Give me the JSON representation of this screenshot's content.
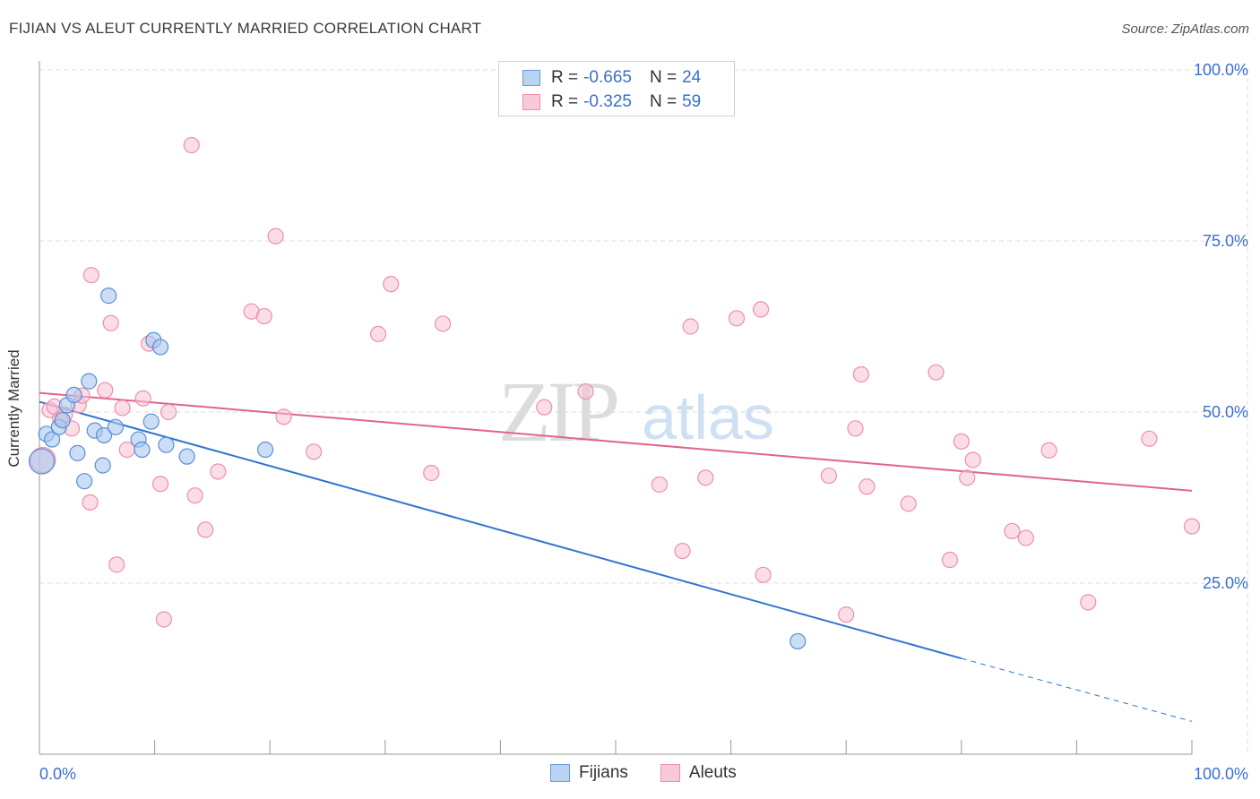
{
  "title": "FIJIAN VS ALEUT CURRENTLY MARRIED CORRELATION CHART",
  "source": "Source: ZipAtlas.com",
  "watermark": "ZIPatlas",
  "legend_top": [
    {
      "r_label": "R =",
      "r_value": "-0.665",
      "n_label": "N =",
      "n_value": "24"
    },
    {
      "r_label": "R =",
      "r_value": "-0.325",
      "n_label": "N =",
      "n_value": "59"
    }
  ],
  "colors": {
    "fijian_fill": "#a9c8f0",
    "fijian_stroke": "#5b8fd6",
    "fijian_line": "#2f74d0",
    "aleut_fill": "#f7c1d2",
    "aleut_stroke": "#ec90ad",
    "aleut_line": "#e0648e",
    "tick_label": "#3a6fd0",
    "grid": "#dddddd"
  },
  "chart_data": {
    "type": "scatter",
    "title": "FIJIAN VS ALEUT CURRENTLY MARRIED CORRELATION CHART",
    "xlabel": "",
    "ylabel": "Currently Married",
    "xlim": [
      0,
      100
    ],
    "ylim": [
      0,
      100
    ],
    "x_tick_labels": [
      "0.0%",
      "100.0%"
    ],
    "y_tick_labels": [
      "25.0%",
      "50.0%",
      "75.0%",
      "100.0%"
    ],
    "y_ticks": [
      25,
      50,
      75,
      100
    ],
    "grid": true,
    "legend_position": "bottom-center",
    "series": [
      {
        "name": "Fijians",
        "r": -0.665,
        "n": 24,
        "points": [
          [
            0.2,
            42.8
          ],
          [
            0.6,
            46.8
          ],
          [
            1.1,
            46.0
          ],
          [
            1.7,
            47.8
          ],
          [
            2.0,
            48.8
          ],
          [
            2.4,
            51.0
          ],
          [
            3.0,
            52.5
          ],
          [
            3.3,
            44.0
          ],
          [
            3.9,
            39.9
          ],
          [
            4.3,
            54.5
          ],
          [
            4.8,
            47.3
          ],
          [
            5.5,
            42.2
          ],
          [
            5.6,
            46.6
          ],
          [
            6.6,
            47.8
          ],
          [
            6.0,
            67.0
          ],
          [
            8.6,
            46.0
          ],
          [
            8.9,
            44.5
          ],
          [
            9.7,
            48.6
          ],
          [
            9.9,
            60.5
          ],
          [
            10.5,
            59.5
          ],
          [
            11.0,
            45.2
          ],
          [
            12.8,
            43.5
          ],
          [
            19.6,
            44.5
          ],
          [
            65.8,
            16.5
          ]
        ],
        "trend": {
          "x0": 0,
          "y0": 51.5,
          "x1": 80,
          "y1": 14.0,
          "dashed_to_x": 100,
          "dashed_to_y": 4.8
        }
      },
      {
        "name": "Aleuts",
        "r": -0.325,
        "n": 59,
        "points": [
          [
            0.3,
            43.0
          ],
          [
            0.9,
            50.3
          ],
          [
            1.3,
            50.8
          ],
          [
            1.8,
            49.0
          ],
          [
            2.2,
            49.6
          ],
          [
            2.8,
            47.6
          ],
          [
            3.4,
            51.0
          ],
          [
            3.7,
            52.4
          ],
          [
            4.4,
            36.8
          ],
          [
            4.5,
            70.0
          ],
          [
            5.7,
            53.2
          ],
          [
            6.2,
            63.0
          ],
          [
            6.7,
            27.7
          ],
          [
            7.2,
            50.6
          ],
          [
            7.6,
            44.5
          ],
          [
            9.0,
            52.0
          ],
          [
            9.5,
            60.0
          ],
          [
            10.5,
            39.5
          ],
          [
            10.8,
            19.7
          ],
          [
            11.2,
            50.0
          ],
          [
            13.2,
            89.0
          ],
          [
            13.5,
            37.8
          ],
          [
            14.4,
            32.8
          ],
          [
            15.5,
            41.3
          ],
          [
            18.4,
            64.7
          ],
          [
            19.5,
            64.0
          ],
          [
            20.5,
            75.7
          ],
          [
            21.2,
            49.3
          ],
          [
            23.8,
            44.2
          ],
          [
            29.4,
            61.4
          ],
          [
            30.5,
            68.7
          ],
          [
            34.0,
            41.1
          ],
          [
            35.0,
            62.9
          ],
          [
            43.8,
            50.7
          ],
          [
            47.4,
            53.0
          ],
          [
            53.8,
            39.4
          ],
          [
            55.8,
            29.7
          ],
          [
            56.5,
            62.5
          ],
          [
            57.8,
            40.4
          ],
          [
            60.5,
            63.7
          ],
          [
            62.8,
            26.2
          ],
          [
            62.6,
            65.0
          ],
          [
            68.5,
            40.7
          ],
          [
            70.0,
            20.4
          ],
          [
            70.8,
            47.6
          ],
          [
            71.3,
            55.5
          ],
          [
            71.8,
            39.1
          ],
          [
            75.4,
            36.6
          ],
          [
            77.8,
            55.8
          ],
          [
            79.0,
            28.4
          ],
          [
            80.0,
            45.7
          ],
          [
            80.5,
            40.4
          ],
          [
            81.0,
            43.0
          ],
          [
            84.4,
            32.6
          ],
          [
            85.6,
            31.6
          ],
          [
            87.6,
            44.4
          ],
          [
            91.0,
            22.2
          ],
          [
            96.3,
            46.1
          ],
          [
            100.0,
            33.3
          ]
        ],
        "trend": {
          "x0": 0,
          "y0": 52.8,
          "x1": 100,
          "y1": 38.5
        }
      }
    ]
  }
}
